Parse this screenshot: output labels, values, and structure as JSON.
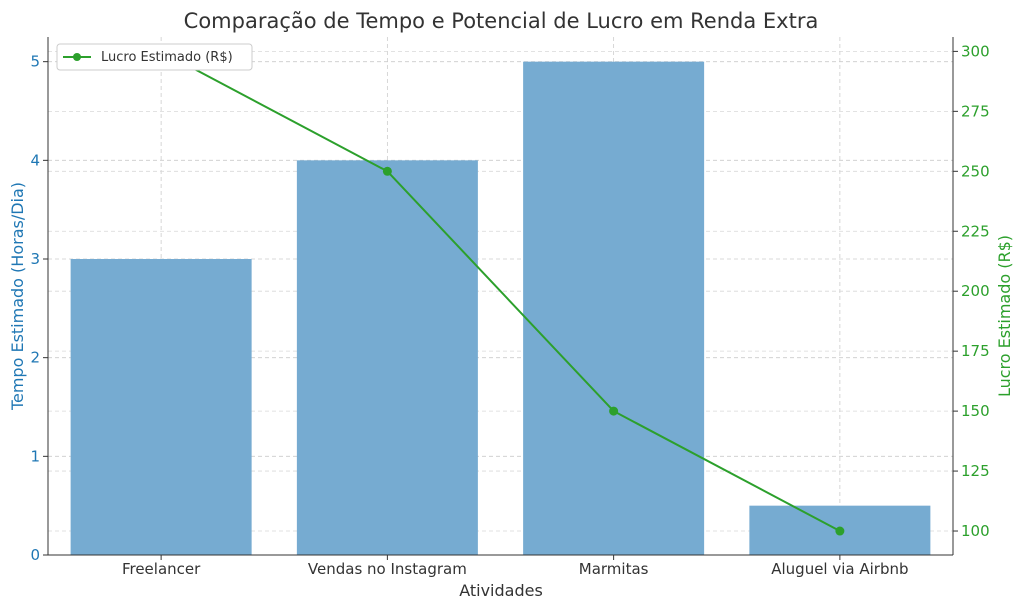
{
  "chart_data": {
    "type": "bar+line",
    "title": "Comparação de Tempo e Potencial de Lucro em Renda Extra",
    "xlabel": "Atividades",
    "categories": [
      "Freelancer",
      "Vendas no Instagram",
      "Marmitas",
      "Aluguel via Airbnb"
    ],
    "bar_series": {
      "values": [
        3,
        4,
        5,
        0.5
      ],
      "axis": "left",
      "ylabel": "Tempo Estimado (Horas/Dia)",
      "color": "#76abd1",
      "axis_color": "#1f77b4"
    },
    "line_series": {
      "name": "Lucro Estimado (R$)",
      "values": [
        300,
        250,
        150,
        100
      ],
      "axis": "right",
      "ylabel": "Lucro Estimado (R$)",
      "color": "#2ca02c"
    },
    "y_left": {
      "min": 0,
      "max": 5.25,
      "ticks": [
        0,
        1,
        2,
        3,
        4,
        5
      ]
    },
    "y_right": {
      "min": 90,
      "max": 306,
      "ticks": [
        100,
        125,
        150,
        175,
        200,
        225,
        250,
        275,
        300
      ]
    },
    "grid": true,
    "legend": "top-left"
  }
}
